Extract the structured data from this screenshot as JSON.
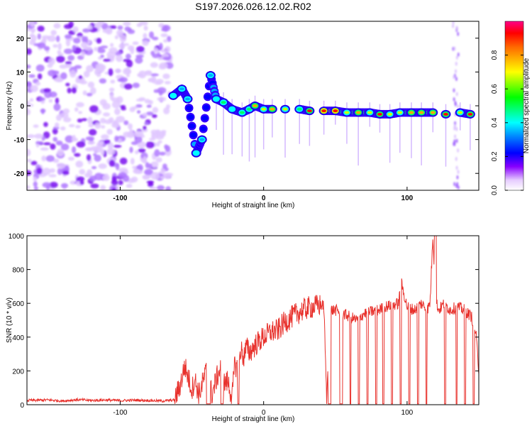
{
  "title": "S197.2026.026.12.02.R02",
  "chart_data": [
    {
      "type": "heatmap",
      "xlabel": "Height of straight line (km)",
      "ylabel": "Frequency (Hz)",
      "xlim": [
        -165,
        150
      ],
      "ylim": [
        -25,
        25
      ],
      "x_ticks": [
        -100,
        0,
        100
      ],
      "y_ticks": [
        -20,
        -10,
        0,
        10,
        20
      ],
      "colorbar": {
        "label": "Normalized spectral amplitude",
        "range": [
          0.0,
          1.0
        ],
        "ticks": [
          0.0,
          0.2,
          0.4,
          0.6,
          0.8
        ],
        "colormap": [
          "#ffffff",
          "#8800ff",
          "#0000ff",
          "#00ffff",
          "#00ff00",
          "#ffff00",
          "#ff0000",
          "#ff0088"
        ]
      },
      "noise_region_x": [
        -165,
        -65
      ],
      "signal_track": [
        {
          "x": -63,
          "y": 3,
          "a": 0.45
        },
        {
          "x": -57,
          "y": 5,
          "a": 0.35
        },
        {
          "x": -53,
          "y": 2,
          "a": 0.4
        },
        {
          "x": -47,
          "y": -14,
          "a": 0.45
        },
        {
          "x": -43,
          "y": -10,
          "a": 0.35
        },
        {
          "x": -37,
          "y": 9,
          "a": 0.4
        },
        {
          "x": -33,
          "y": 2,
          "a": 0.5
        },
        {
          "x": -28,
          "y": 1,
          "a": 0.55
        },
        {
          "x": -22,
          "y": -1,
          "a": 0.5
        },
        {
          "x": -15,
          "y": -2,
          "a": 0.55
        },
        {
          "x": -10,
          "y": -1,
          "a": 0.6
        },
        {
          "x": -6,
          "y": 0,
          "a": 0.75
        },
        {
          "x": 0,
          "y": -1,
          "a": 0.7
        },
        {
          "x": 6,
          "y": -1,
          "a": 0.8
        },
        {
          "x": 15,
          "y": -1,
          "a": 0.65
        },
        {
          "x": 25,
          "y": -1,
          "a": 0.6
        },
        {
          "x": 32,
          "y": -1.5,
          "a": 0.85
        },
        {
          "x": 42,
          "y": -1.5,
          "a": 0.9
        },
        {
          "x": 50,
          "y": -1.5,
          "a": 0.9
        },
        {
          "x": 58,
          "y": -2,
          "a": 0.7
        },
        {
          "x": 66,
          "y": -2,
          "a": 0.75
        },
        {
          "x": 74,
          "y": -2,
          "a": 0.7
        },
        {
          "x": 81,
          "y": -2.5,
          "a": 0.85
        },
        {
          "x": 88,
          "y": -2.5,
          "a": 0.7
        },
        {
          "x": 95,
          "y": -2,
          "a": 0.7
        },
        {
          "x": 103,
          "y": -2,
          "a": 0.8
        },
        {
          "x": 110,
          "y": -2,
          "a": 0.75
        },
        {
          "x": 118,
          "y": -2,
          "a": 0.8
        },
        {
          "x": 127,
          "y": -2.5,
          "a": 0.85
        },
        {
          "x": 137,
          "y": -2,
          "a": 0.7
        },
        {
          "x": 144,
          "y": -2.5,
          "a": 0.85
        }
      ]
    },
    {
      "type": "line",
      "xlabel": "Height of straight line (km)",
      "ylabel": "SNR (10 * v/v)",
      "xlim": [
        -165,
        150
      ],
      "ylim": [
        0,
        1000
      ],
      "x_ticks": [
        -100,
        0,
        100
      ],
      "y_ticks": [
        0,
        200,
        400,
        600,
        800,
        1000
      ],
      "color": "#e8322d",
      "series": [
        {
          "x": [
            -165,
            -150,
            -140,
            -130,
            -120,
            -110,
            -100,
            -90,
            -80,
            -70,
            -62,
            -58,
            -55,
            -50,
            -48,
            -45,
            -40,
            -38,
            -36,
            -33,
            -30,
            -28,
            -25,
            -22,
            -20,
            -18,
            -16,
            -14,
            -12,
            -10,
            -5,
            0,
            5,
            10,
            15,
            20,
            25,
            30,
            35,
            40,
            42,
            44,
            46,
            48,
            50,
            55,
            60,
            65,
            70,
            75,
            80,
            85,
            90,
            94,
            96,
            100,
            105,
            110,
            114,
            116,
            118,
            120,
            122,
            126,
            130,
            135,
            140,
            145,
            148,
            150
          ],
          "y": [
            25,
            28,
            22,
            30,
            25,
            28,
            24,
            27,
            25,
            22,
            28,
            120,
            230,
            90,
            150,
            60,
            200,
            130,
            60,
            150,
            220,
            120,
            140,
            40,
            250,
            200,
            330,
            280,
            340,
            310,
            360,
            400,
            430,
            440,
            490,
            520,
            550,
            570,
            580,
            590,
            585,
            10,
            560,
            560,
            560,
            540,
            520,
            500,
            540,
            550,
            560,
            580,
            590,
            600,
            720,
            580,
            560,
            600,
            560,
            600,
            1000,
            620,
            560,
            600,
            560,
            580,
            560,
            520,
            420,
            200
          ]
        }
      ]
    }
  ]
}
